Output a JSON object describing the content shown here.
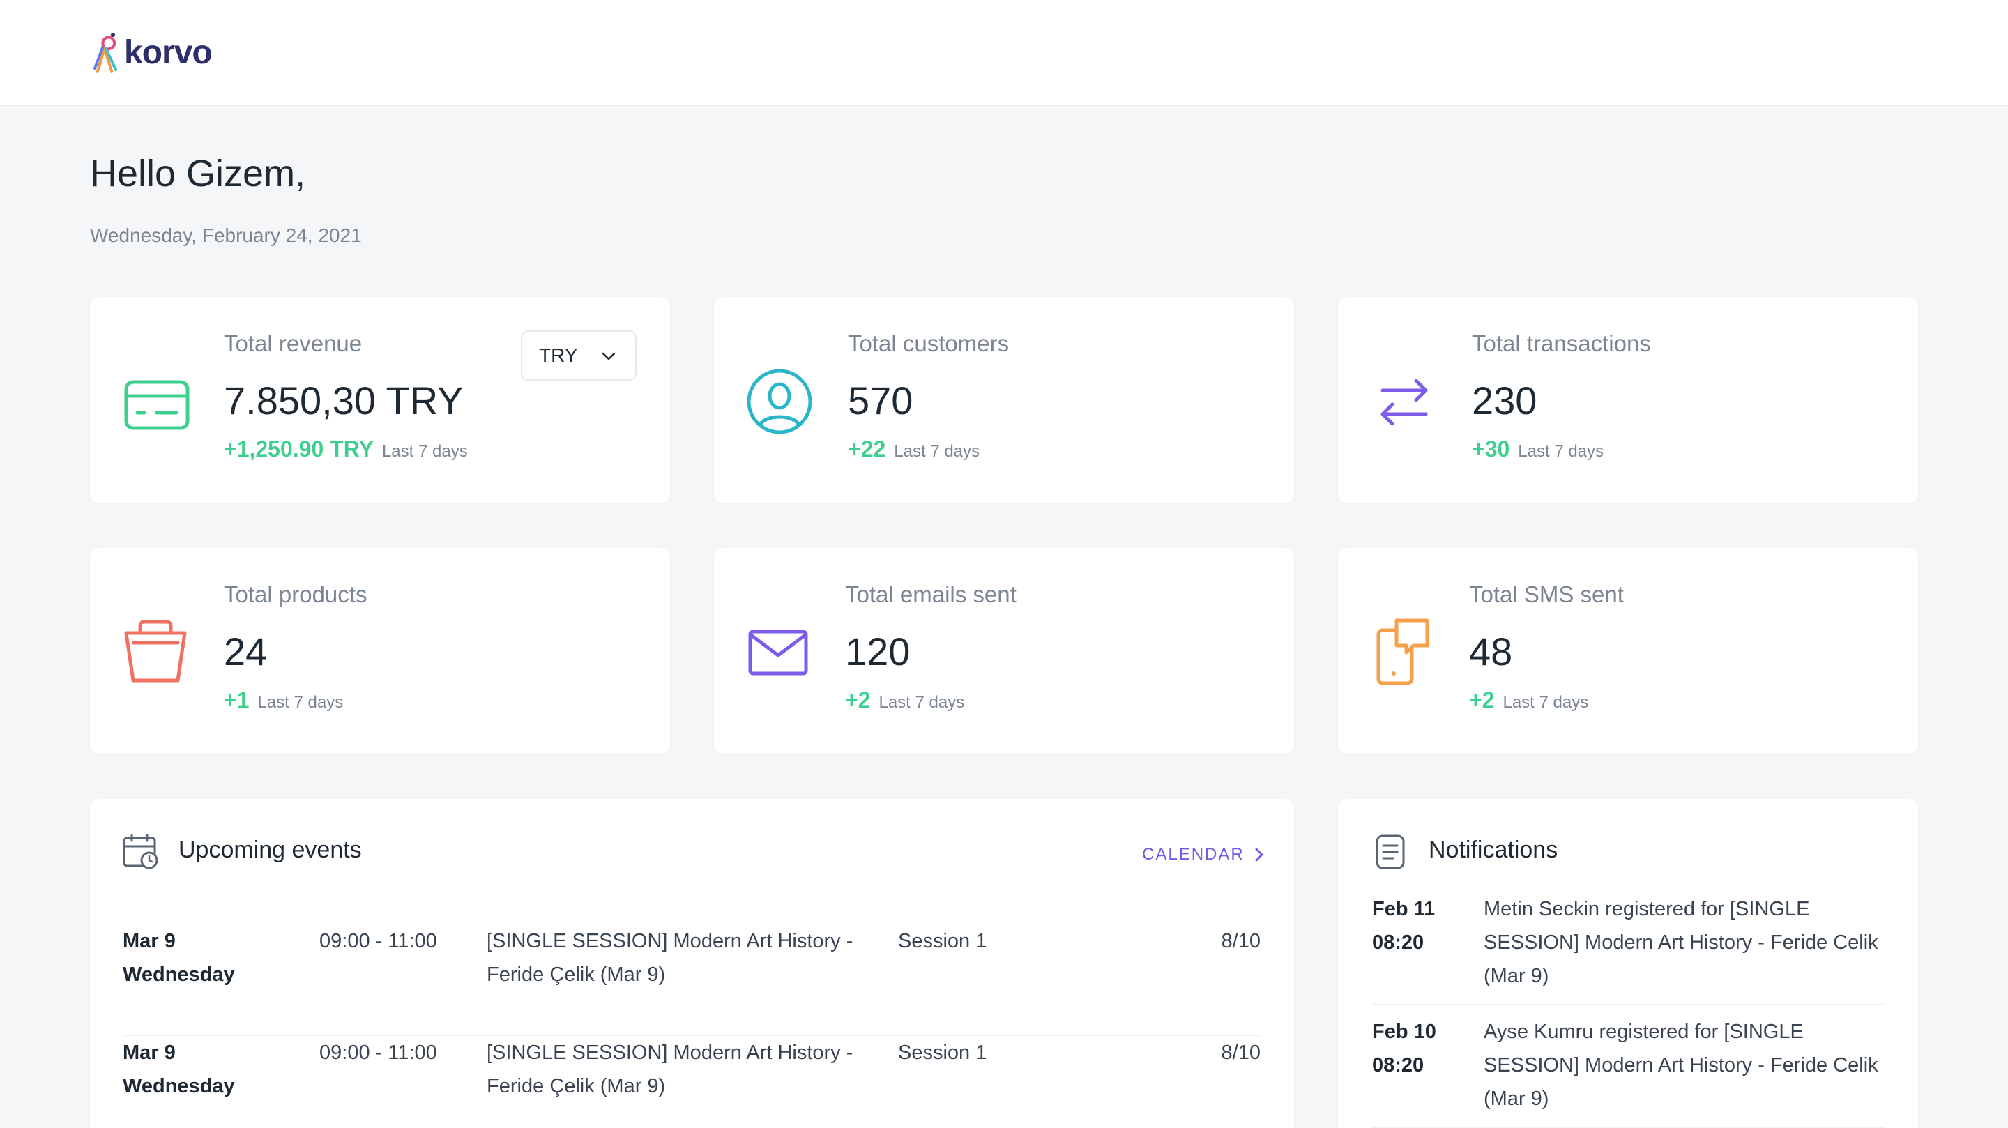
{
  "app": {
    "name": "korvo"
  },
  "header": {
    "greeting": "Hello Gizem,",
    "date": "Wednesday, February 24, 2021"
  },
  "stats": [
    {
      "label": "Total revenue",
      "value": "7.850,30 TRY",
      "delta": "+1,250.90 TRY",
      "period": "Last 7 days",
      "icon": "credit-card-icon",
      "color": "#3ecf8e"
    },
    {
      "label": "Total customers",
      "value": "570",
      "delta": "+22",
      "period": "Last 7 days",
      "icon": "user-icon",
      "color": "#29b6c6"
    },
    {
      "label": "Total transactions",
      "value": "230",
      "delta": "+30",
      "period": "Last 7 days",
      "icon": "arrows-exchange-icon",
      "color": "#7c5ce8"
    },
    {
      "label": "Total products",
      "value": "24",
      "delta": "+1",
      "period": "Last 7 days",
      "icon": "shopping-bag-icon",
      "color": "#f07161"
    },
    {
      "label": "Total emails sent",
      "value": "120",
      "delta": "+2",
      "period": "Last 7 days",
      "icon": "envelope-icon",
      "color": "#7c5ce8"
    },
    {
      "label": "Total SMS sent",
      "value": "48",
      "delta": "+2",
      "period": "Last 7 days",
      "icon": "phone-message-icon",
      "color": "#f5a04a"
    }
  ],
  "currency_select": {
    "value": "TRY"
  },
  "events": {
    "title": "Upcoming events",
    "calendar_link": "CALENDAR",
    "rows": [
      {
        "date": "Mar 9",
        "day": "Wednesday",
        "time": "09:00 - 11:00",
        "title": "[SINGLE SESSION] Modern Art History - Feride Çelik (Mar 9)",
        "session": "Session 1",
        "count": "8/10"
      },
      {
        "date": "Mar 9",
        "day": "Wednesday",
        "time": "09:00 - 11:00",
        "title": "[SINGLE SESSION] Modern Art History - Feride Çelik (Mar 9)",
        "session": "Session 1",
        "count": "8/10"
      }
    ]
  },
  "notifications": {
    "title": "Notifications",
    "rows": [
      {
        "date": "Feb 11",
        "time": "08:20",
        "text": "Metin Seckin registered for [SINGLE SESSION] Modern Art History - Feride Celik (Mar 9)"
      },
      {
        "date": "Feb 10",
        "time": "08:20",
        "text": "Ayse Kumru registered for [SINGLE SESSION] Modern Art History - Feride Celik (Mar 9)"
      }
    ]
  },
  "colors": {
    "accent": "#6c5ce7",
    "positive": "#3ecf8e",
    "background": "#f5f6f8"
  }
}
